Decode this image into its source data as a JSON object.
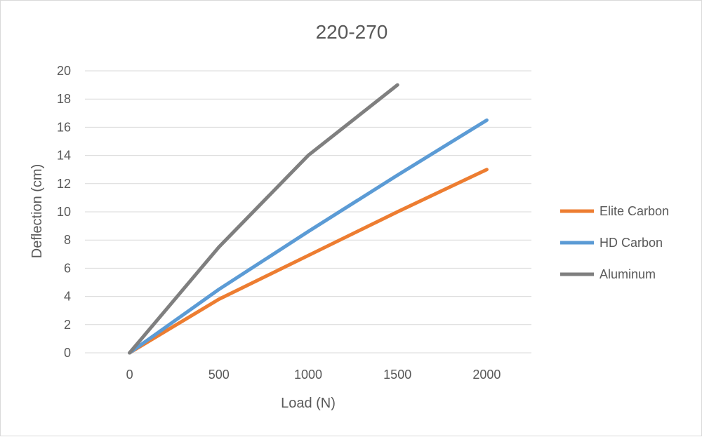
{
  "chart_data": {
    "type": "line",
    "title": "220-270",
    "xlabel": "Load (N)",
    "ylabel": "Deflection (cm)",
    "x": [
      0,
      500,
      1000,
      1500,
      2000
    ],
    "xlim": [
      -250,
      2250
    ],
    "ylim": [
      0,
      20
    ],
    "yticks": [
      0,
      2,
      4,
      6,
      8,
      10,
      12,
      14,
      16,
      18,
      20
    ],
    "xticks": [
      0,
      500,
      1000,
      1500,
      2000
    ],
    "grid": true,
    "legend_position": "right",
    "series": [
      {
        "name": "Elite Carbon",
        "color": "#ED7D31",
        "points": [
          [
            0,
            0
          ],
          [
            500,
            3.8
          ],
          [
            1000,
            6.9
          ],
          [
            1500,
            10.0
          ],
          [
            2000,
            13.0
          ]
        ]
      },
      {
        "name": "HD Carbon",
        "color": "#5B9BD5",
        "points": [
          [
            0,
            0
          ],
          [
            500,
            4.5
          ],
          [
            1000,
            8.6
          ],
          [
            1500,
            12.6
          ],
          [
            2000,
            16.5
          ]
        ]
      },
      {
        "name": "Aluminum",
        "color": "#7F7F7F",
        "points": [
          [
            0,
            0
          ],
          [
            500,
            7.5
          ],
          [
            1000,
            14.0
          ],
          [
            1500,
            19.0
          ]
        ]
      }
    ]
  }
}
